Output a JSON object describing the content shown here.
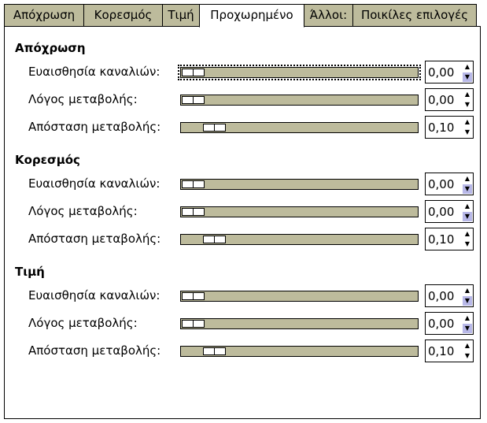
{
  "tabs": [
    {
      "label": "Απόχρωση",
      "active": false
    },
    {
      "label": "Κορεσμός",
      "active": false
    },
    {
      "label": "Τιμή",
      "active": false
    },
    {
      "label": "Προχωρημένο",
      "active": true
    },
    {
      "label": "Άλλοι:",
      "active": false
    },
    {
      "label": "Ποικίλες επιλογές",
      "active": false
    }
  ],
  "colors": {
    "tab_inactive": "#bdbb9c",
    "slider_trough": "#bdbb9c",
    "spin_highlight": "#b8b8e8"
  },
  "sections": [
    {
      "title": "Απόχρωση",
      "rows": [
        {
          "label": "Ευαισθησία καναλιών:",
          "value": "0,00",
          "slider_fraction": 0.0,
          "focused": true,
          "down_highlight": true
        },
        {
          "label": "Λόγος μεταβολής:",
          "value": "0,00",
          "slider_fraction": 0.0,
          "focused": false,
          "down_highlight": false
        },
        {
          "label": "Απόσταση μεταβολής:",
          "value": "0,10",
          "slider_fraction": 0.1,
          "focused": false,
          "down_highlight": false
        }
      ]
    },
    {
      "title": "Κορεσμός",
      "rows": [
        {
          "label": "Ευαισθησία καναλιών:",
          "value": "0,00",
          "slider_fraction": 0.0,
          "focused": false,
          "down_highlight": true
        },
        {
          "label": "Λόγος μεταβολής:",
          "value": "0,00",
          "slider_fraction": 0.0,
          "focused": false,
          "down_highlight": true
        },
        {
          "label": "Απόσταση μεταβολής:",
          "value": "0,10",
          "slider_fraction": 0.1,
          "focused": false,
          "down_highlight": false
        }
      ]
    },
    {
      "title": "Τιμή",
      "rows": [
        {
          "label": "Ευαισθησία καναλιών:",
          "value": "0,00",
          "slider_fraction": 0.0,
          "focused": false,
          "down_highlight": true
        },
        {
          "label": "Λόγος μεταβολής:",
          "value": "0,00",
          "slider_fraction": 0.0,
          "focused": false,
          "down_highlight": true
        },
        {
          "label": "Απόσταση μεταβολής:",
          "value": "0,10",
          "slider_fraction": 0.1,
          "focused": false,
          "down_highlight": false
        }
      ]
    }
  ]
}
